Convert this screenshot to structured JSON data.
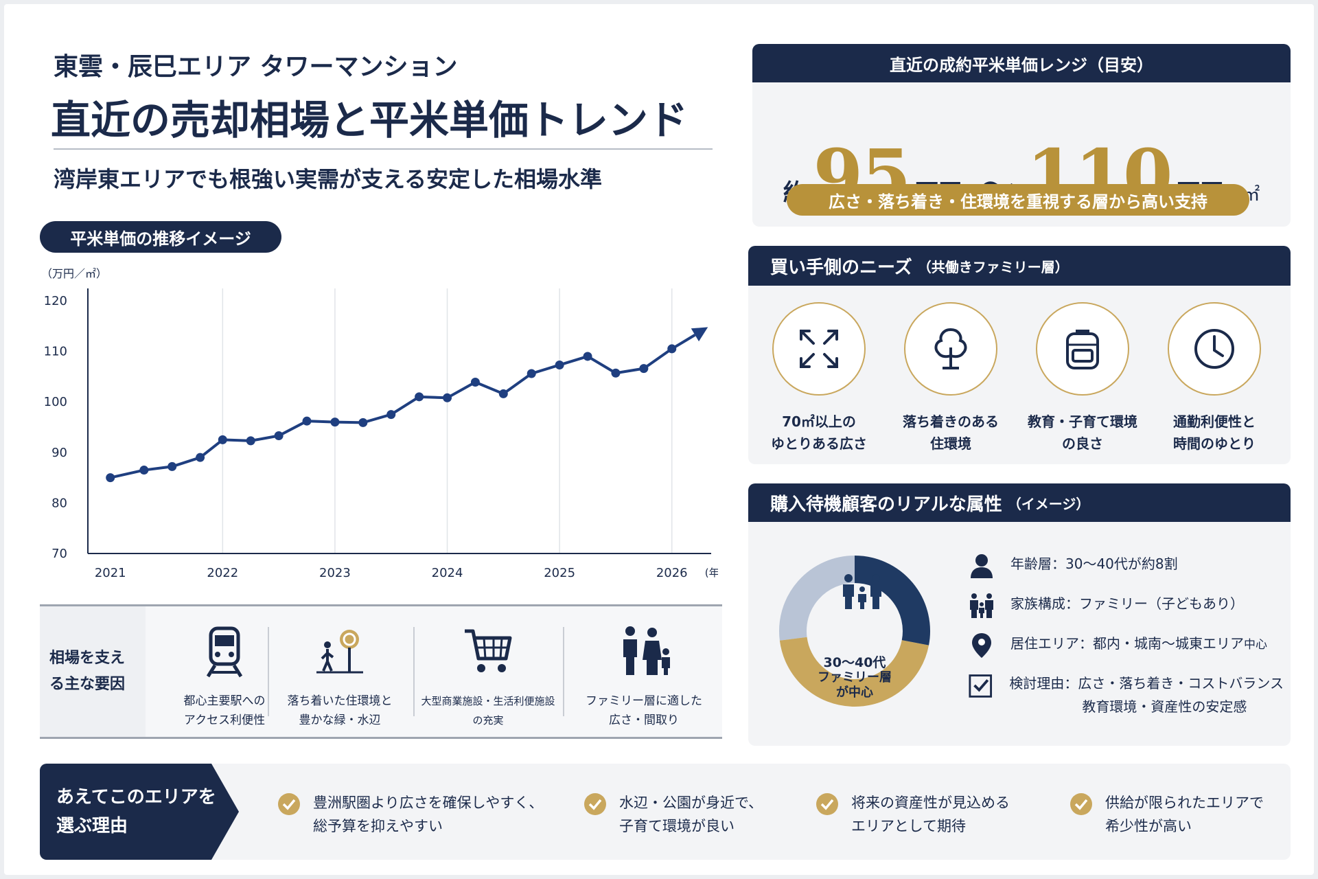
{
  "header": {
    "subtitle": "東雲・辰巳エリア タワーマンション",
    "title": "直近の売却相場と平米単価トレンド",
    "lead": "湾岸東エリアでも根強い実需が支える安定した相場水準"
  },
  "chart_section": {
    "pill": "平米単価の推移イメージ"
  },
  "chart_data": {
    "type": "line",
    "ylabel": "（万円／㎡）",
    "xlabel": "(年)",
    "ylim": [
      70,
      120
    ],
    "yticks": [
      70,
      80,
      90,
      100,
      110,
      120
    ],
    "xticks": [
      2021,
      2022,
      2023,
      2024,
      2025,
      2026
    ],
    "grid": "vertical",
    "series": [
      {
        "x": [
          2021.0,
          2021.3,
          2021.55,
          2021.8,
          2022.0,
          2022.25,
          2022.5,
          2022.75,
          2023.0,
          2023.25,
          2023.5,
          2023.75,
          2024.0,
          2024.25,
          2024.5,
          2024.75,
          2025.0,
          2025.25,
          2025.5,
          2025.75,
          2026.0,
          2026.3
        ],
        "y": [
          85,
          86.5,
          87.2,
          89,
          92.5,
          92.3,
          93.3,
          96.2,
          96,
          95.9,
          97.5,
          101,
          100.8,
          103.9,
          101.6,
          105.6,
          107.3,
          109,
          105.7,
          106.6,
          110.5,
          114.5
        ],
        "color": "#1f3f80"
      }
    ]
  },
  "factors": {
    "title": "相場を支える主な要因",
    "items": [
      {
        "icon": "train-icon",
        "label1": "都心主要駅への",
        "label2": "アクセス利便性"
      },
      {
        "icon": "tree-walk-icon",
        "label1": "落ち着いた住環境と",
        "label2": "豊かな緑・水辺"
      },
      {
        "icon": "cart-icon",
        "label1": "大型商業施設・生活利便施設",
        "label2": "の充実"
      },
      {
        "icon": "family-icon",
        "label1": "ファミリー層に適した",
        "label2": "広さ・間取り"
      }
    ]
  },
  "price": {
    "header": "直近の成約平米単価レンジ（目安）",
    "about": "約",
    "low": "95",
    "high": "110",
    "unit": "万円",
    "tilde": "〜",
    "per": "/ ㎡",
    "band": "広さ・落ち着き・住環境を重視する層から高い支持"
  },
  "needs": {
    "header": "買い手側のニーズ",
    "header_small": "（共働きファミリー層）",
    "items": [
      {
        "icon": "expand-icon",
        "label1": "70㎡以上の",
        "label2": "ゆとりある広さ"
      },
      {
        "icon": "tree-icon",
        "label1": "落ち着きのある",
        "label2": "住環境"
      },
      {
        "icon": "backpack-icon",
        "label1": "教育・子育て環境",
        "label2": "の良さ"
      },
      {
        "icon": "clock-icon",
        "label1": "通勤利便性と",
        "label2": "時間のゆとり"
      }
    ]
  },
  "attributes": {
    "header": "購入待機顧客のリアルな属性",
    "header_small": "（イメージ）",
    "donut": {
      "label1": "30〜40代",
      "label2": "ファミリー層",
      "label3": "が中心",
      "segments": [
        {
          "value": 0.28,
          "color": "#1f3a63"
        },
        {
          "value": 0.45,
          "color": "#c9a75d"
        },
        {
          "value": 0.27,
          "color": "#b9c4d6"
        }
      ]
    },
    "items": [
      {
        "icon": "person-icon",
        "text": "年齢層：30〜40代が約8割"
      },
      {
        "icon": "family-icon",
        "text": "家族構成：ファミリー（子どもあり）"
      },
      {
        "icon": "pin-icon",
        "text": "居住エリア：都内・城南〜城東エリア",
        "small": "中心"
      },
      {
        "icon": "checkbox-icon",
        "text": "検討理由：広さ・落ち着き・コストバランス",
        "text2": "教育環境・資産性の安定感"
      }
    ]
  },
  "reasons": {
    "title1": "あえてこのエリアを",
    "title2": "選ぶ理由",
    "items": [
      {
        "line1": "豊洲駅圏より広さを確保しやすく、",
        "line2": "総予算を抑えやすい"
      },
      {
        "line1": "水辺・公園が身近で、",
        "line2": "子育て環境が良い"
      },
      {
        "line1": "将来の資産性が見込める",
        "line2": "エリアとして期待"
      },
      {
        "line1": "供給が限られたエリアで",
        "line2": "希少性が高い"
      }
    ]
  },
  "colors": {
    "navy": "#1b2a4a",
    "gold": "#b8923a",
    "line": "#1f3f80"
  }
}
